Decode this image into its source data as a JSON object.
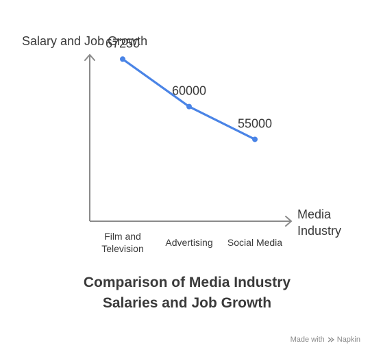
{
  "chart_data": {
    "type": "line",
    "title_lines": [
      "Comparison of Media Industry",
      "Salaries and Job Growth"
    ],
    "ylabel": "Salary and Job Growth",
    "xlabel_lines": [
      "Media",
      "Industry"
    ],
    "categories": [
      [
        "Film and",
        "Television"
      ],
      [
        "Advertising"
      ],
      [
        "Social Media"
      ]
    ],
    "values": [
      67250,
      60000,
      55000
    ],
    "data_labels": [
      "67250",
      "60000",
      "55000"
    ],
    "ylim": [
      42500,
      70000
    ],
    "grid": false,
    "color": "#4a84e6"
  },
  "footer": {
    "made_with": "Made with",
    "brand": "Napkin",
    "brand_icon": "napkin-logo-icon"
  }
}
